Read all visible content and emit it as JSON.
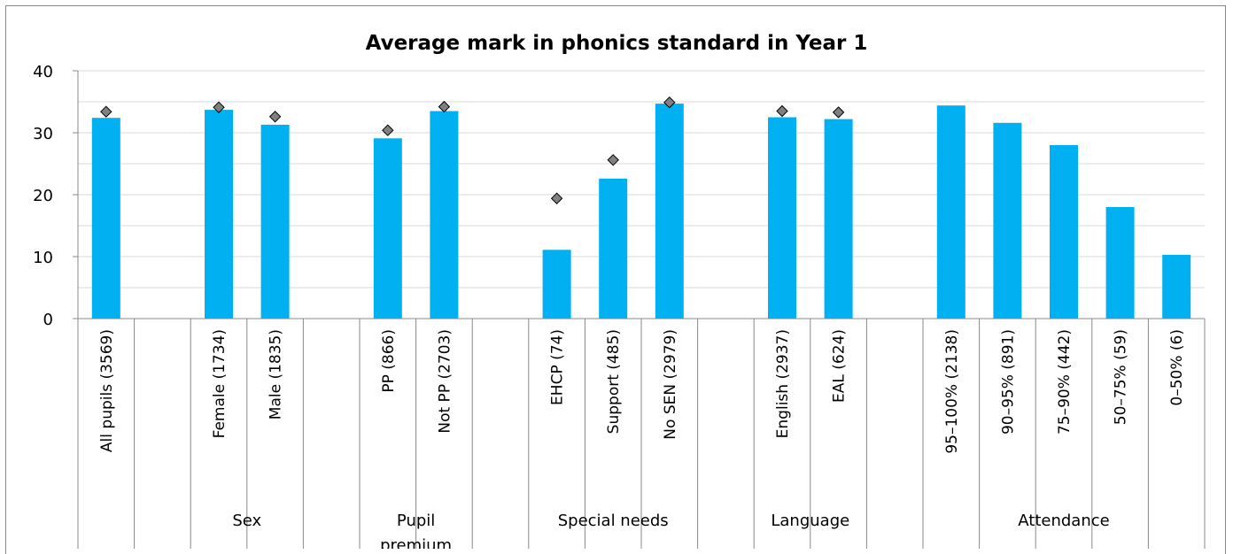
{
  "chart_data": {
    "type": "bar",
    "title": "Average mark in phonics standard in Year 1",
    "xlabel": "",
    "ylabel": "",
    "ylim": [
      0,
      40
    ],
    "yticks": [
      0,
      10,
      20,
      30,
      40
    ],
    "grid": true,
    "bar_color": "#00b0f0",
    "marker_color": "#808080",
    "categories": [
      "All pupils (3569)",
      "",
      "Female (1734)",
      "Male (1835)",
      "",
      "PP (866)",
      "Not PP (2703)",
      "",
      "EHCP (74)",
      "Support (485)",
      "No SEN (2979)",
      "",
      "English (2937)",
      "EAL (624)",
      "",
      "95–100% (2138)",
      "90–95% (891)",
      "75–90% (442)",
      "50–75% (59)",
      "0–50% (6)"
    ],
    "series": [
      {
        "type": "bar",
        "values": [
          32.4,
          null,
          33.7,
          31.3,
          null,
          29.1,
          33.5,
          null,
          11.1,
          22.6,
          34.7,
          null,
          32.5,
          32.2,
          null,
          34.4,
          31.6,
          28.0,
          18.0,
          10.3
        ]
      },
      {
        "type": "marker",
        "values": [
          33.4,
          null,
          34.1,
          32.6,
          null,
          30.4,
          34.2,
          null,
          19.4,
          25.6,
          34.9,
          null,
          33.5,
          33.3,
          null,
          null,
          null,
          null,
          null,
          null
        ]
      }
    ],
    "groups": [
      {
        "label": "",
        "categories": [
          "All pupils (3569)"
        ]
      },
      {
        "label": "Sex",
        "categories": [
          "Female (1734)",
          "Male (1835)"
        ]
      },
      {
        "label": "Pupil premium",
        "categories": [
          "PP (866)",
          "Not PP (2703)"
        ]
      },
      {
        "label": "Special needs",
        "categories": [
          "EHCP (74)",
          "Support (485)",
          "No SEN (2979)"
        ]
      },
      {
        "label": "Language",
        "categories": [
          "English (2937)",
          "EAL (624)"
        ]
      },
      {
        "label": "Attendance",
        "categories": [
          "95–100% (2138)",
          "90–95% (891)",
          "75–90% (442)",
          "50–75% (59)",
          "0–50% (6)"
        ]
      }
    ]
  }
}
